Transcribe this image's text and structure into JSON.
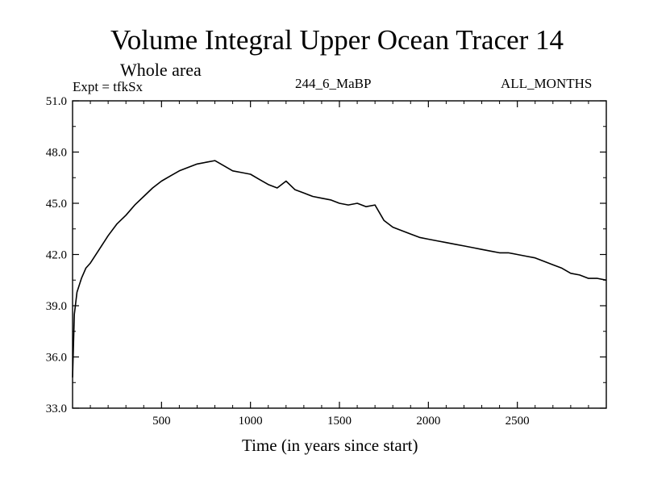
{
  "chart_data": {
    "type": "line",
    "title": "Volume Integral Upper Ocean Tracer 14",
    "subtitle": "Whole area",
    "experiment": "Expt = tfkSx",
    "run_label": "244_6_MaBP",
    "period_label": "ALL_MONTHS",
    "xlabel": "Time (in years since start)",
    "ylabel": "",
    "xlim": [
      0,
      3000
    ],
    "ylim": [
      33.0,
      51.0
    ],
    "x_ticks": [
      500,
      1000,
      1500,
      2000,
      2500
    ],
    "x_tick_labels": [
      "500",
      "1000",
      "1500",
      "2000",
      "2500"
    ],
    "y_ticks": [
      33.0,
      36.0,
      39.0,
      42.0,
      45.0,
      48.0,
      51.0
    ],
    "y_tick_labels": [
      "33.0",
      "36.0",
      "39.0",
      "42.0",
      "45.0",
      "48.0",
      "51.0"
    ],
    "series": [
      {
        "name": "Tracer 14",
        "x": [
          0,
          10,
          25,
          50,
          75,
          100,
          150,
          200,
          250,
          300,
          350,
          400,
          450,
          500,
          550,
          600,
          650,
          700,
          750,
          800,
          850,
          900,
          950,
          1000,
          1050,
          1100,
          1150,
          1200,
          1250,
          1300,
          1350,
          1400,
          1450,
          1500,
          1550,
          1600,
          1650,
          1700,
          1750,
          1800,
          1850,
          1900,
          1950,
          2000,
          2050,
          2100,
          2150,
          2200,
          2250,
          2300,
          2350,
          2400,
          2450,
          2500,
          2550,
          2600,
          2650,
          2700,
          2750,
          2800,
          2850,
          2900,
          2950,
          3000
        ],
        "values": [
          34.8,
          38.5,
          39.8,
          40.6,
          41.2,
          41.5,
          42.3,
          43.1,
          43.8,
          44.3,
          44.9,
          45.4,
          45.9,
          46.3,
          46.6,
          46.9,
          47.1,
          47.3,
          47.4,
          47.5,
          47.2,
          46.9,
          46.8,
          46.7,
          46.4,
          46.1,
          45.9,
          46.3,
          45.8,
          45.6,
          45.4,
          45.3,
          45.2,
          45.0,
          44.9,
          45.0,
          44.8,
          44.9,
          44.0,
          43.6,
          43.4,
          43.2,
          43.0,
          42.9,
          42.8,
          42.7,
          42.6,
          42.5,
          42.4,
          42.3,
          42.2,
          42.1,
          42.1,
          42.0,
          41.9,
          41.8,
          41.6,
          41.4,
          41.2,
          40.9,
          40.8,
          40.6,
          40.6,
          40.5
        ]
      }
    ]
  }
}
